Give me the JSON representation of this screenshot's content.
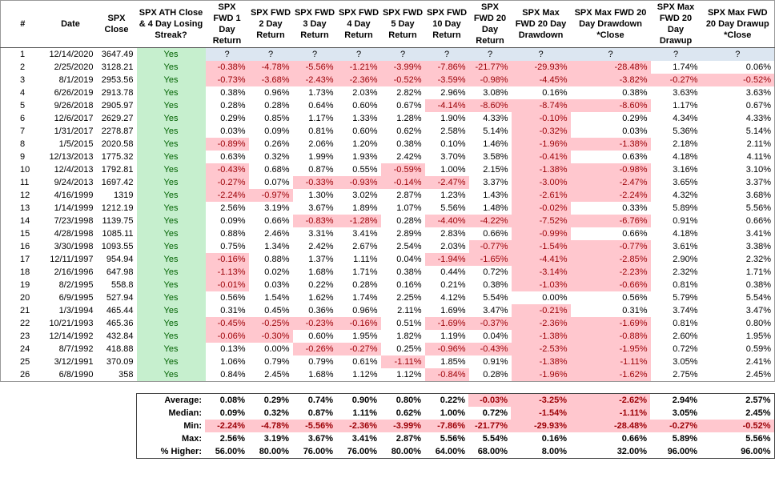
{
  "table": {
    "columns": [
      "#",
      "Date",
      "SPX Close",
      "SPX ATH Close & 4 Day Losing Streak?",
      "SPX FWD 1 Day Return",
      "SPX FWD 2 Day Return",
      "SPX FWD 3 Day Return",
      "SPX FWD 4 Day Return",
      "SPX FWD 5 Day Return",
      "SPX FWD 10 Day Return",
      "SPX FWD 20 Day Return",
      "SPX Max FWD 20 Day Drawdown",
      "SPX Max FWD 20 Day Drawdown *Close",
      "SPX Max FWD 20 Day Drawup",
      "SPX Max FWD 20 Day Drawup *Close"
    ],
    "rows": [
      [
        "1",
        "12/14/2020",
        "3647.49",
        "Yes",
        "?",
        "?",
        "?",
        "?",
        "?",
        "?",
        "?",
        "?",
        "?",
        "?",
        "?"
      ],
      [
        "2",
        "2/25/2020",
        "3128.21",
        "Yes",
        "-0.38%",
        "-4.78%",
        "-5.56%",
        "-1.21%",
        "-3.99%",
        "-7.86%",
        "-21.77%",
        "-29.93%",
        "-28.48%",
        "1.74%",
        "0.06%"
      ],
      [
        "3",
        "8/1/2019",
        "2953.56",
        "Yes",
        "-0.73%",
        "-3.68%",
        "-2.43%",
        "-2.36%",
        "-0.52%",
        "-3.59%",
        "-0.98%",
        "-4.45%",
        "-3.82%",
        "-0.27%",
        "-0.52%"
      ],
      [
        "4",
        "6/26/2019",
        "2913.78",
        "Yes",
        "0.38%",
        "0.96%",
        "1.73%",
        "2.03%",
        "2.82%",
        "2.96%",
        "3.08%",
        "0.16%",
        "0.38%",
        "3.63%",
        "3.63%"
      ],
      [
        "5",
        "9/26/2018",
        "2905.97",
        "Yes",
        "0.28%",
        "0.28%",
        "0.64%",
        "0.60%",
        "0.67%",
        "-4.14%",
        "-8.60%",
        "-8.74%",
        "-8.60%",
        "1.17%",
        "0.67%"
      ],
      [
        "6",
        "12/6/2017",
        "2629.27",
        "Yes",
        "0.29%",
        "0.85%",
        "1.17%",
        "1.33%",
        "1.28%",
        "1.90%",
        "4.33%",
        "-0.10%",
        "0.29%",
        "4.34%",
        "4.33%"
      ],
      [
        "7",
        "1/31/2017",
        "2278.87",
        "Yes",
        "0.03%",
        "0.09%",
        "0.81%",
        "0.60%",
        "0.62%",
        "2.58%",
        "5.14%",
        "-0.32%",
        "0.03%",
        "5.36%",
        "5.14%"
      ],
      [
        "8",
        "1/5/2015",
        "2020.58",
        "Yes",
        "-0.89%",
        "0.26%",
        "2.06%",
        "1.20%",
        "0.38%",
        "0.10%",
        "1.46%",
        "-1.96%",
        "-1.38%",
        "2.18%",
        "2.11%"
      ],
      [
        "9",
        "12/13/2013",
        "1775.32",
        "Yes",
        "0.63%",
        "0.32%",
        "1.99%",
        "1.93%",
        "2.42%",
        "3.70%",
        "3.58%",
        "-0.41%",
        "0.63%",
        "4.18%",
        "4.11%"
      ],
      [
        "10",
        "12/4/2013",
        "1792.81",
        "Yes",
        "-0.43%",
        "0.68%",
        "0.87%",
        "0.55%",
        "-0.59%",
        "1.00%",
        "2.15%",
        "-1.38%",
        "-0.98%",
        "3.16%",
        "3.10%"
      ],
      [
        "11",
        "9/24/2013",
        "1697.42",
        "Yes",
        "-0.27%",
        "0.07%",
        "-0.33%",
        "-0.93%",
        "-0.14%",
        "-2.47%",
        "3.37%",
        "-3.00%",
        "-2.47%",
        "3.65%",
        "3.37%"
      ],
      [
        "12",
        "4/16/1999",
        "1319",
        "Yes",
        "-2.24%",
        "-0.97%",
        "1.30%",
        "3.02%",
        "2.87%",
        "1.23%",
        "1.43%",
        "-2.61%",
        "-2.24%",
        "4.32%",
        "3.68%"
      ],
      [
        "13",
        "1/14/1999",
        "1212.19",
        "Yes",
        "2.56%",
        "3.19%",
        "3.67%",
        "1.89%",
        "1.07%",
        "5.56%",
        "1.48%",
        "-0.02%",
        "0.33%",
        "5.89%",
        "5.56%"
      ],
      [
        "14",
        "7/23/1998",
        "1139.75",
        "Yes",
        "0.09%",
        "0.66%",
        "-0.83%",
        "-1.28%",
        "0.28%",
        "-4.40%",
        "-4.22%",
        "-7.52%",
        "-6.76%",
        "0.91%",
        "0.66%"
      ],
      [
        "15",
        "4/28/1998",
        "1085.11",
        "Yes",
        "0.88%",
        "2.46%",
        "3.31%",
        "3.41%",
        "2.89%",
        "2.83%",
        "0.66%",
        "-0.99%",
        "0.66%",
        "4.18%",
        "3.41%"
      ],
      [
        "16",
        "3/30/1998",
        "1093.55",
        "Yes",
        "0.75%",
        "1.34%",
        "2.42%",
        "2.67%",
        "2.54%",
        "2.03%",
        "-0.77%",
        "-1.54%",
        "-0.77%",
        "3.61%",
        "3.38%"
      ],
      [
        "17",
        "12/11/1997",
        "954.94",
        "Yes",
        "-0.16%",
        "0.88%",
        "1.37%",
        "1.11%",
        "0.04%",
        "-1.94%",
        "-1.65%",
        "-4.41%",
        "-2.85%",
        "2.90%",
        "2.32%"
      ],
      [
        "18",
        "2/16/1996",
        "647.98",
        "Yes",
        "-1.13%",
        "0.02%",
        "1.68%",
        "1.71%",
        "0.38%",
        "0.44%",
        "0.72%",
        "-3.14%",
        "-2.23%",
        "2.32%",
        "1.71%"
      ],
      [
        "19",
        "8/2/1995",
        "558.8",
        "Yes",
        "-0.01%",
        "0.03%",
        "0.22%",
        "0.28%",
        "0.16%",
        "0.21%",
        "0.38%",
        "-1.03%",
        "-0.66%",
        "0.81%",
        "0.38%"
      ],
      [
        "20",
        "6/9/1995",
        "527.94",
        "Yes",
        "0.56%",
        "1.54%",
        "1.62%",
        "1.74%",
        "2.25%",
        "4.12%",
        "5.54%",
        "0.00%",
        "0.56%",
        "5.79%",
        "5.54%"
      ],
      [
        "21",
        "1/3/1994",
        "465.44",
        "Yes",
        "0.31%",
        "0.45%",
        "0.36%",
        "0.96%",
        "2.11%",
        "1.69%",
        "3.47%",
        "-0.21%",
        "0.31%",
        "3.74%",
        "3.47%"
      ],
      [
        "22",
        "10/21/1993",
        "465.36",
        "Yes",
        "-0.45%",
        "-0.25%",
        "-0.23%",
        "-0.16%",
        "0.51%",
        "-1.69%",
        "-0.37%",
        "-2.36%",
        "-1.69%",
        "0.81%",
        "0.80%"
      ],
      [
        "23",
        "12/14/1992",
        "432.84",
        "Yes",
        "-0.06%",
        "-0.30%",
        "0.60%",
        "1.95%",
        "1.82%",
        "1.19%",
        "0.04%",
        "-1.38%",
        "-0.88%",
        "2.60%",
        "1.95%"
      ],
      [
        "24",
        "8/7/1992",
        "418.88",
        "Yes",
        "0.13%",
        "0.00%",
        "-0.26%",
        "-0.27%",
        "0.25%",
        "-0.96%",
        "-0.43%",
        "-2.53%",
        "-1.95%",
        "0.72%",
        "0.59%"
      ],
      [
        "25",
        "3/12/1991",
        "370.09",
        "Yes",
        "1.06%",
        "0.79%",
        "0.79%",
        "0.61%",
        "-1.11%",
        "1.85%",
        "0.91%",
        "-1.38%",
        "-1.11%",
        "3.05%",
        "2.41%"
      ],
      [
        "26",
        "6/8/1990",
        "358",
        "Yes",
        "0.84%",
        "2.45%",
        "1.68%",
        "1.12%",
        "1.12%",
        "-0.84%",
        "0.28%",
        "-1.96%",
        "-1.62%",
        "2.75%",
        "2.45%"
      ]
    ],
    "summary": [
      {
        "label": "Average:",
        "values": [
          "0.08%",
          "0.29%",
          "0.74%",
          "0.90%",
          "0.80%",
          "0.22%",
          "-0.03%",
          "-3.25%",
          "-2.62%",
          "2.94%",
          "2.57%"
        ]
      },
      {
        "label": "Median:",
        "values": [
          "0.09%",
          "0.32%",
          "0.87%",
          "1.11%",
          "0.62%",
          "1.00%",
          "0.72%",
          "-1.54%",
          "-1.11%",
          "3.05%",
          "2.45%"
        ]
      },
      {
        "label": "Min:",
        "values": [
          "-2.24%",
          "-4.78%",
          "-5.56%",
          "-2.36%",
          "-3.99%",
          "-7.86%",
          "-21.77%",
          "-29.93%",
          "-28.48%",
          "-0.27%",
          "-0.52%"
        ]
      },
      {
        "label": "Max:",
        "values": [
          "2.56%",
          "3.19%",
          "3.67%",
          "3.41%",
          "2.87%",
          "5.56%",
          "5.54%",
          "0.16%",
          "0.66%",
          "5.89%",
          "5.56%"
        ]
      },
      {
        "label": "% Higher:",
        "values": [
          "56.00%",
          "80.00%",
          "76.00%",
          "76.00%",
          "80.00%",
          "64.00%",
          "68.00%",
          "8.00%",
          "32.00%",
          "96.00%",
          "96.00%"
        ]
      }
    ]
  }
}
